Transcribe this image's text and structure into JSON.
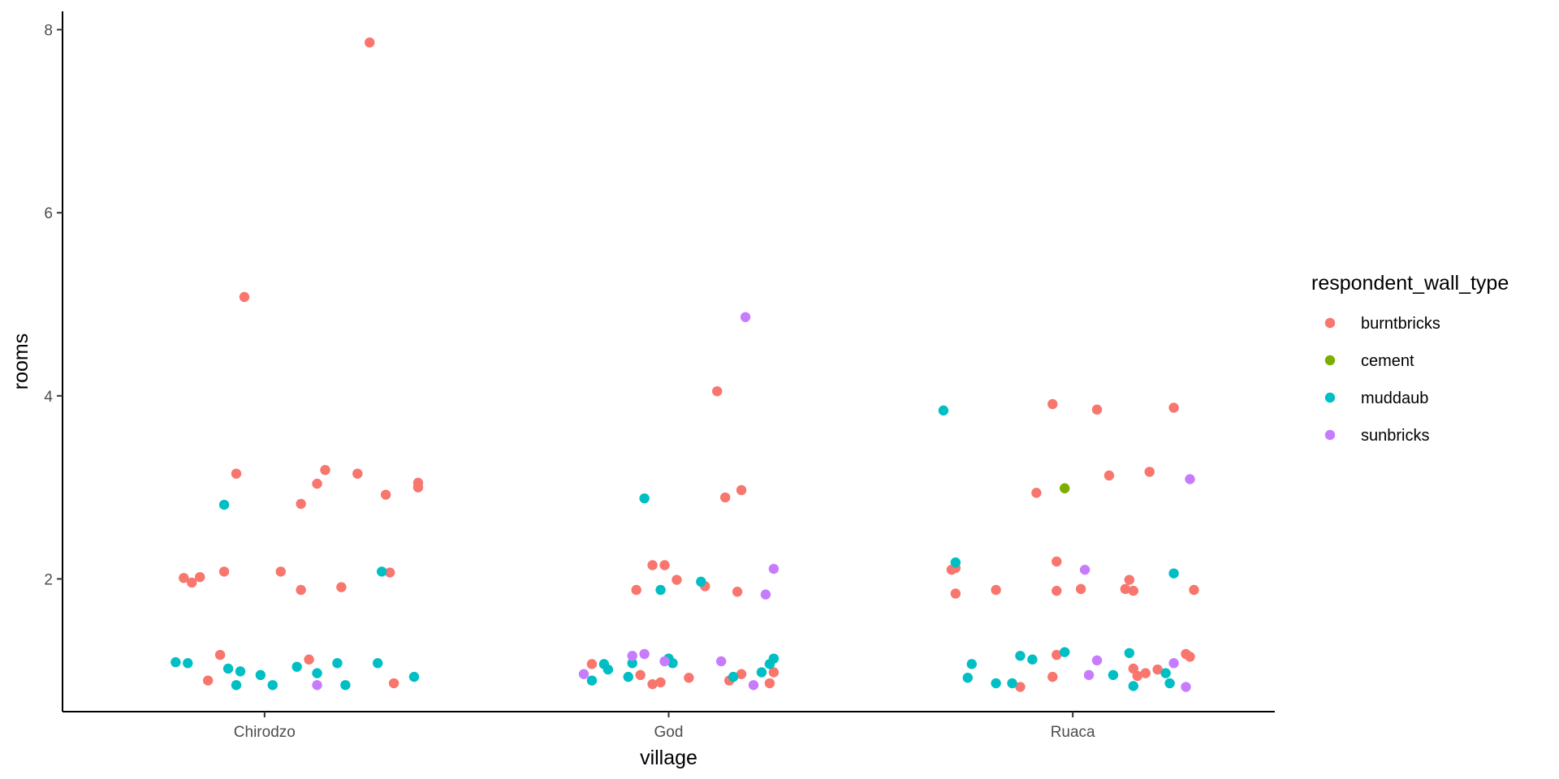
{
  "chart_data": {
    "type": "scatter",
    "xlabel": "village",
    "ylabel": "rooms",
    "categories": [
      "Chirodzo",
      "God",
      "Ruaca"
    ],
    "y_ticks": [
      2,
      4,
      6,
      8
    ],
    "ylim": [
      0.55,
      8.2
    ],
    "grid": false,
    "legend": {
      "title": "respondent_wall_type",
      "placement": "right",
      "entries": [
        {
          "name": "burntbricks",
          "color": "#F8766D"
        },
        {
          "name": "cement",
          "color": "#7CAE00"
        },
        {
          "name": "muddaub",
          "color": "#00BFC4"
        },
        {
          "name": "sunbricks",
          "color": "#C77CFF"
        }
      ]
    },
    "series": [
      {
        "name": "burntbricks",
        "color": "#F8766D",
        "points": [
          {
            "village": "Chirodzo",
            "x": 0.76,
            "y": 7.86
          },
          {
            "village": "Chirodzo",
            "x": 0.45,
            "y": 5.08
          },
          {
            "village": "Chirodzo",
            "x": 0.43,
            "y": 3.15
          },
          {
            "village": "Chirodzo",
            "x": 0.65,
            "y": 3.19
          },
          {
            "village": "Chirodzo",
            "x": 0.73,
            "y": 3.15
          },
          {
            "village": "Chirodzo",
            "x": 0.63,
            "y": 3.04
          },
          {
            "village": "Chirodzo",
            "x": 0.88,
            "y": 3.05
          },
          {
            "village": "Chirodzo",
            "x": 0.88,
            "y": 3.0
          },
          {
            "village": "Chirodzo",
            "x": 0.8,
            "y": 2.92
          },
          {
            "village": "Chirodzo",
            "x": 0.59,
            "y": 2.82
          },
          {
            "village": "Chirodzo",
            "x": 0.3,
            "y": 2.01
          },
          {
            "village": "Chirodzo",
            "x": 0.32,
            "y": 1.96
          },
          {
            "village": "Chirodzo",
            "x": 0.34,
            "y": 2.02
          },
          {
            "village": "Chirodzo",
            "x": 0.4,
            "y": 2.08
          },
          {
            "village": "Chirodzo",
            "x": 0.54,
            "y": 2.08
          },
          {
            "village": "Chirodzo",
            "x": 0.81,
            "y": 2.07
          },
          {
            "village": "Chirodzo",
            "x": 0.59,
            "y": 1.88
          },
          {
            "village": "Chirodzo",
            "x": 0.69,
            "y": 1.91
          },
          {
            "village": "Chirodzo",
            "x": 0.39,
            "y": 1.17
          },
          {
            "village": "Chirodzo",
            "x": 0.61,
            "y": 1.12
          },
          {
            "village": "Chirodzo",
            "x": 0.36,
            "y": 0.89
          },
          {
            "village": "Chirodzo",
            "x": 0.82,
            "y": 0.86
          },
          {
            "village": "God",
            "x": 1.62,
            "y": 4.05
          },
          {
            "village": "God",
            "x": 1.68,
            "y": 2.97
          },
          {
            "village": "God",
            "x": 1.64,
            "y": 2.89
          },
          {
            "village": "God",
            "x": 1.46,
            "y": 2.15
          },
          {
            "village": "God",
            "x": 1.49,
            "y": 2.15
          },
          {
            "village": "God",
            "x": 1.52,
            "y": 1.99
          },
          {
            "village": "God",
            "x": 1.42,
            "y": 1.88
          },
          {
            "village": "God",
            "x": 1.59,
            "y": 1.92
          },
          {
            "village": "God",
            "x": 1.67,
            "y": 1.86
          },
          {
            "village": "God",
            "x": 1.31,
            "y": 1.07
          },
          {
            "village": "God",
            "x": 1.43,
            "y": 0.95
          },
          {
            "village": "God",
            "x": 1.46,
            "y": 0.85
          },
          {
            "village": "God",
            "x": 1.48,
            "y": 0.87
          },
          {
            "village": "God",
            "x": 1.55,
            "y": 0.92
          },
          {
            "village": "God",
            "x": 1.65,
            "y": 0.89
          },
          {
            "village": "God",
            "x": 1.68,
            "y": 0.96
          },
          {
            "village": "God",
            "x": 1.76,
            "y": 0.98
          },
          {
            "village": "God",
            "x": 1.75,
            "y": 0.86
          },
          {
            "village": "Ruaca",
            "x": 2.45,
            "y": 3.91
          },
          {
            "village": "Ruaca",
            "x": 2.56,
            "y": 3.85
          },
          {
            "village": "Ruaca",
            "x": 2.75,
            "y": 3.87
          },
          {
            "village": "Ruaca",
            "x": 2.41,
            "y": 2.94
          },
          {
            "village": "Ruaca",
            "x": 2.59,
            "y": 3.13
          },
          {
            "village": "Ruaca",
            "x": 2.69,
            "y": 3.17
          },
          {
            "village": "Ruaca",
            "x": 2.2,
            "y": 2.1
          },
          {
            "village": "Ruaca",
            "x": 2.21,
            "y": 2.12
          },
          {
            "village": "Ruaca",
            "x": 2.46,
            "y": 2.19
          },
          {
            "village": "Ruaca",
            "x": 2.21,
            "y": 1.84
          },
          {
            "village": "Ruaca",
            "x": 2.31,
            "y": 1.88
          },
          {
            "village": "Ruaca",
            "x": 2.46,
            "y": 1.87
          },
          {
            "village": "Ruaca",
            "x": 2.52,
            "y": 1.89
          },
          {
            "village": "Ruaca",
            "x": 2.63,
            "y": 1.89
          },
          {
            "village": "Ruaca",
            "x": 2.64,
            "y": 1.99
          },
          {
            "village": "Ruaca",
            "x": 2.65,
            "y": 1.87
          },
          {
            "village": "Ruaca",
            "x": 2.8,
            "y": 1.88
          },
          {
            "village": "Ruaca",
            "x": 2.46,
            "y": 1.17
          },
          {
            "village": "Ruaca",
            "x": 2.45,
            "y": 0.93
          },
          {
            "village": "Ruaca",
            "x": 2.37,
            "y": 0.82
          },
          {
            "village": "Ruaca",
            "x": 2.65,
            "y": 1.02
          },
          {
            "village": "Ruaca",
            "x": 2.66,
            "y": 0.94
          },
          {
            "village": "Ruaca",
            "x": 2.68,
            "y": 0.97
          },
          {
            "village": "Ruaca",
            "x": 2.71,
            "y": 1.01
          },
          {
            "village": "Ruaca",
            "x": 2.78,
            "y": 1.18
          },
          {
            "village": "Ruaca",
            "x": 2.79,
            "y": 1.15
          }
        ]
      },
      {
        "name": "cement",
        "color": "#7CAE00",
        "points": [
          {
            "village": "Ruaca",
            "x": 2.48,
            "y": 2.99
          }
        ]
      },
      {
        "name": "muddaub",
        "color": "#00BFC4",
        "points": [
          {
            "village": "Chirodzo",
            "x": 0.4,
            "y": 2.81
          },
          {
            "village": "Chirodzo",
            "x": 0.79,
            "y": 2.08
          },
          {
            "village": "Chirodzo",
            "x": 0.28,
            "y": 1.09
          },
          {
            "village": "Chirodzo",
            "x": 0.31,
            "y": 1.08
          },
          {
            "village": "Chirodzo",
            "x": 0.41,
            "y": 1.02
          },
          {
            "village": "Chirodzo",
            "x": 0.44,
            "y": 0.99
          },
          {
            "village": "Chirodzo",
            "x": 0.49,
            "y": 0.95
          },
          {
            "village": "Chirodzo",
            "x": 0.43,
            "y": 0.84
          },
          {
            "village": "Chirodzo",
            "x": 0.52,
            "y": 0.84
          },
          {
            "village": "Chirodzo",
            "x": 0.58,
            "y": 1.04
          },
          {
            "village": "Chirodzo",
            "x": 0.63,
            "y": 0.97
          },
          {
            "village": "Chirodzo",
            "x": 0.68,
            "y": 1.08
          },
          {
            "village": "Chirodzo",
            "x": 0.7,
            "y": 0.84
          },
          {
            "village": "Chirodzo",
            "x": 0.78,
            "y": 1.08
          },
          {
            "village": "Chirodzo",
            "x": 0.87,
            "y": 0.93
          },
          {
            "village": "God",
            "x": 1.44,
            "y": 2.88
          },
          {
            "village": "God",
            "x": 1.58,
            "y": 1.97
          },
          {
            "village": "God",
            "x": 1.48,
            "y": 1.88
          },
          {
            "village": "God",
            "x": 1.34,
            "y": 1.07
          },
          {
            "village": "God",
            "x": 1.35,
            "y": 1.01
          },
          {
            "village": "God",
            "x": 1.41,
            "y": 1.08
          },
          {
            "village": "God",
            "x": 1.5,
            "y": 1.13
          },
          {
            "village": "God",
            "x": 1.51,
            "y": 1.08
          },
          {
            "village": "God",
            "x": 1.31,
            "y": 0.89
          },
          {
            "village": "God",
            "x": 1.4,
            "y": 0.93
          },
          {
            "village": "God",
            "x": 1.66,
            "y": 0.93
          },
          {
            "village": "God",
            "x": 1.73,
            "y": 0.98
          },
          {
            "village": "God",
            "x": 1.75,
            "y": 1.07
          },
          {
            "village": "God",
            "x": 1.76,
            "y": 1.13
          },
          {
            "village": "Ruaca",
            "x": 2.18,
            "y": 3.84
          },
          {
            "village": "Ruaca",
            "x": 2.21,
            "y": 2.18
          },
          {
            "village": "Ruaca",
            "x": 2.75,
            "y": 2.06
          },
          {
            "village": "Ruaca",
            "x": 2.25,
            "y": 1.07
          },
          {
            "village": "Ruaca",
            "x": 2.24,
            "y": 0.92
          },
          {
            "village": "Ruaca",
            "x": 2.31,
            "y": 0.86
          },
          {
            "village": "Ruaca",
            "x": 2.35,
            "y": 0.86
          },
          {
            "village": "Ruaca",
            "x": 2.37,
            "y": 1.16
          },
          {
            "village": "Ruaca",
            "x": 2.4,
            "y": 1.12
          },
          {
            "village": "Ruaca",
            "x": 2.48,
            "y": 1.2
          },
          {
            "village": "Ruaca",
            "x": 2.6,
            "y": 0.95
          },
          {
            "village": "Ruaca",
            "x": 2.64,
            "y": 1.19
          },
          {
            "village": "Ruaca",
            "x": 2.65,
            "y": 0.83
          },
          {
            "village": "Ruaca",
            "x": 2.73,
            "y": 0.97
          },
          {
            "village": "Ruaca",
            "x": 2.74,
            "y": 0.86
          }
        ]
      },
      {
        "name": "sunbricks",
        "color": "#C77CFF",
        "points": [
          {
            "village": "Chirodzo",
            "x": 0.63,
            "y": 0.84
          },
          {
            "village": "God",
            "x": 1.69,
            "y": 4.86
          },
          {
            "village": "God",
            "x": 1.76,
            "y": 2.11
          },
          {
            "village": "God",
            "x": 1.74,
            "y": 1.83
          },
          {
            "village": "God",
            "x": 1.29,
            "y": 0.96
          },
          {
            "village": "God",
            "x": 1.41,
            "y": 1.16
          },
          {
            "village": "God",
            "x": 1.44,
            "y": 1.18
          },
          {
            "village": "God",
            "x": 1.49,
            "y": 1.1
          },
          {
            "village": "God",
            "x": 1.63,
            "y": 1.1
          },
          {
            "village": "God",
            "x": 1.71,
            "y": 0.84
          },
          {
            "village": "Ruaca",
            "x": 2.53,
            "y": 2.1
          },
          {
            "village": "Ruaca",
            "x": 2.79,
            "y": 3.09
          },
          {
            "village": "Ruaca",
            "x": 2.56,
            "y": 1.11
          },
          {
            "village": "Ruaca",
            "x": 2.54,
            "y": 0.95
          },
          {
            "village": "Ruaca",
            "x": 2.75,
            "y": 1.08
          },
          {
            "village": "Ruaca",
            "x": 2.78,
            "y": 0.82
          }
        ]
      }
    ]
  }
}
